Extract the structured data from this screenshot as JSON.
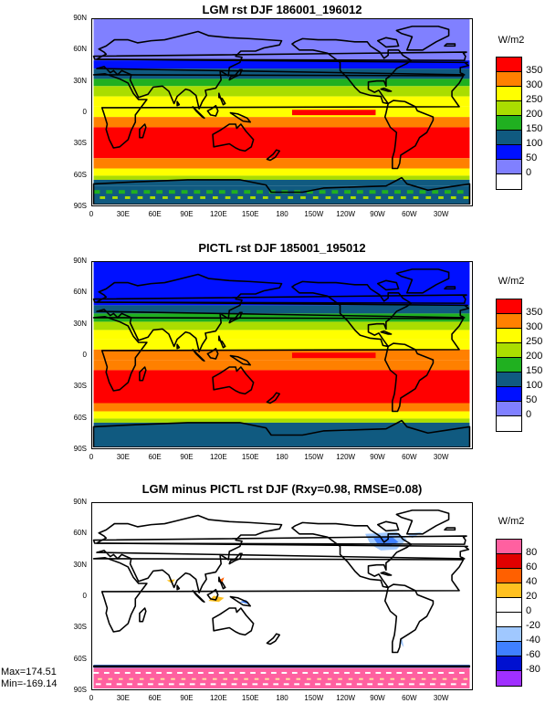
{
  "panels": [
    {
      "title": "LGM rst DJF 186001_196012",
      "units": "W/m2",
      "levels": [
        "350",
        "300",
        "250",
        "200",
        "150",
        "100",
        "50",
        "0"
      ],
      "colors": [
        "#ff0000",
        "#ff8000",
        "#ffff00",
        "#aadd00",
        "#20b020",
        "#105a80",
        "#0010ff",
        "#8080ff",
        "#ffffff"
      ],
      "fill": "absolute",
      "polar_ice": "lgm"
    },
    {
      "title": "PICTL rst DJF 185001_195012",
      "units": "W/m2",
      "levels": [
        "350",
        "300",
        "250",
        "200",
        "150",
        "100",
        "50",
        "0"
      ],
      "colors": [
        "#ff0000",
        "#ff8000",
        "#ffff00",
        "#aadd00",
        "#20b020",
        "#105a80",
        "#0010ff",
        "#8080ff",
        "#ffffff"
      ],
      "fill": "absolute",
      "polar_ice": "pi"
    },
    {
      "title": "LGM minus PICTL rst DJF (Rxy=0.98, RMSE=0.08)",
      "units": "W/m2",
      "levels": [
        "80",
        "60",
        "40",
        "20",
        "0",
        "-20",
        "-40",
        "-60",
        "-80"
      ],
      "colors": [
        "#ff60a0",
        "#e00000",
        "#ff6000",
        "#ffc020",
        "#ffffff",
        "#ffffff",
        "#a0c8ff",
        "#4080ff",
        "#0010d0",
        "#a030ff"
      ],
      "fill": "difference",
      "max_text": "Max=174.51",
      "min_text": "Min=-169.14"
    }
  ],
  "lat_labels": [
    "90N",
    "60N",
    "30N",
    "0",
    "30S",
    "60S",
    "90S"
  ],
  "lon_labels": [
    "0",
    "30E",
    "60E",
    "90E",
    "120E",
    "150E",
    "180",
    "150W",
    "120W",
    "90W",
    "60W",
    "30W"
  ]
}
